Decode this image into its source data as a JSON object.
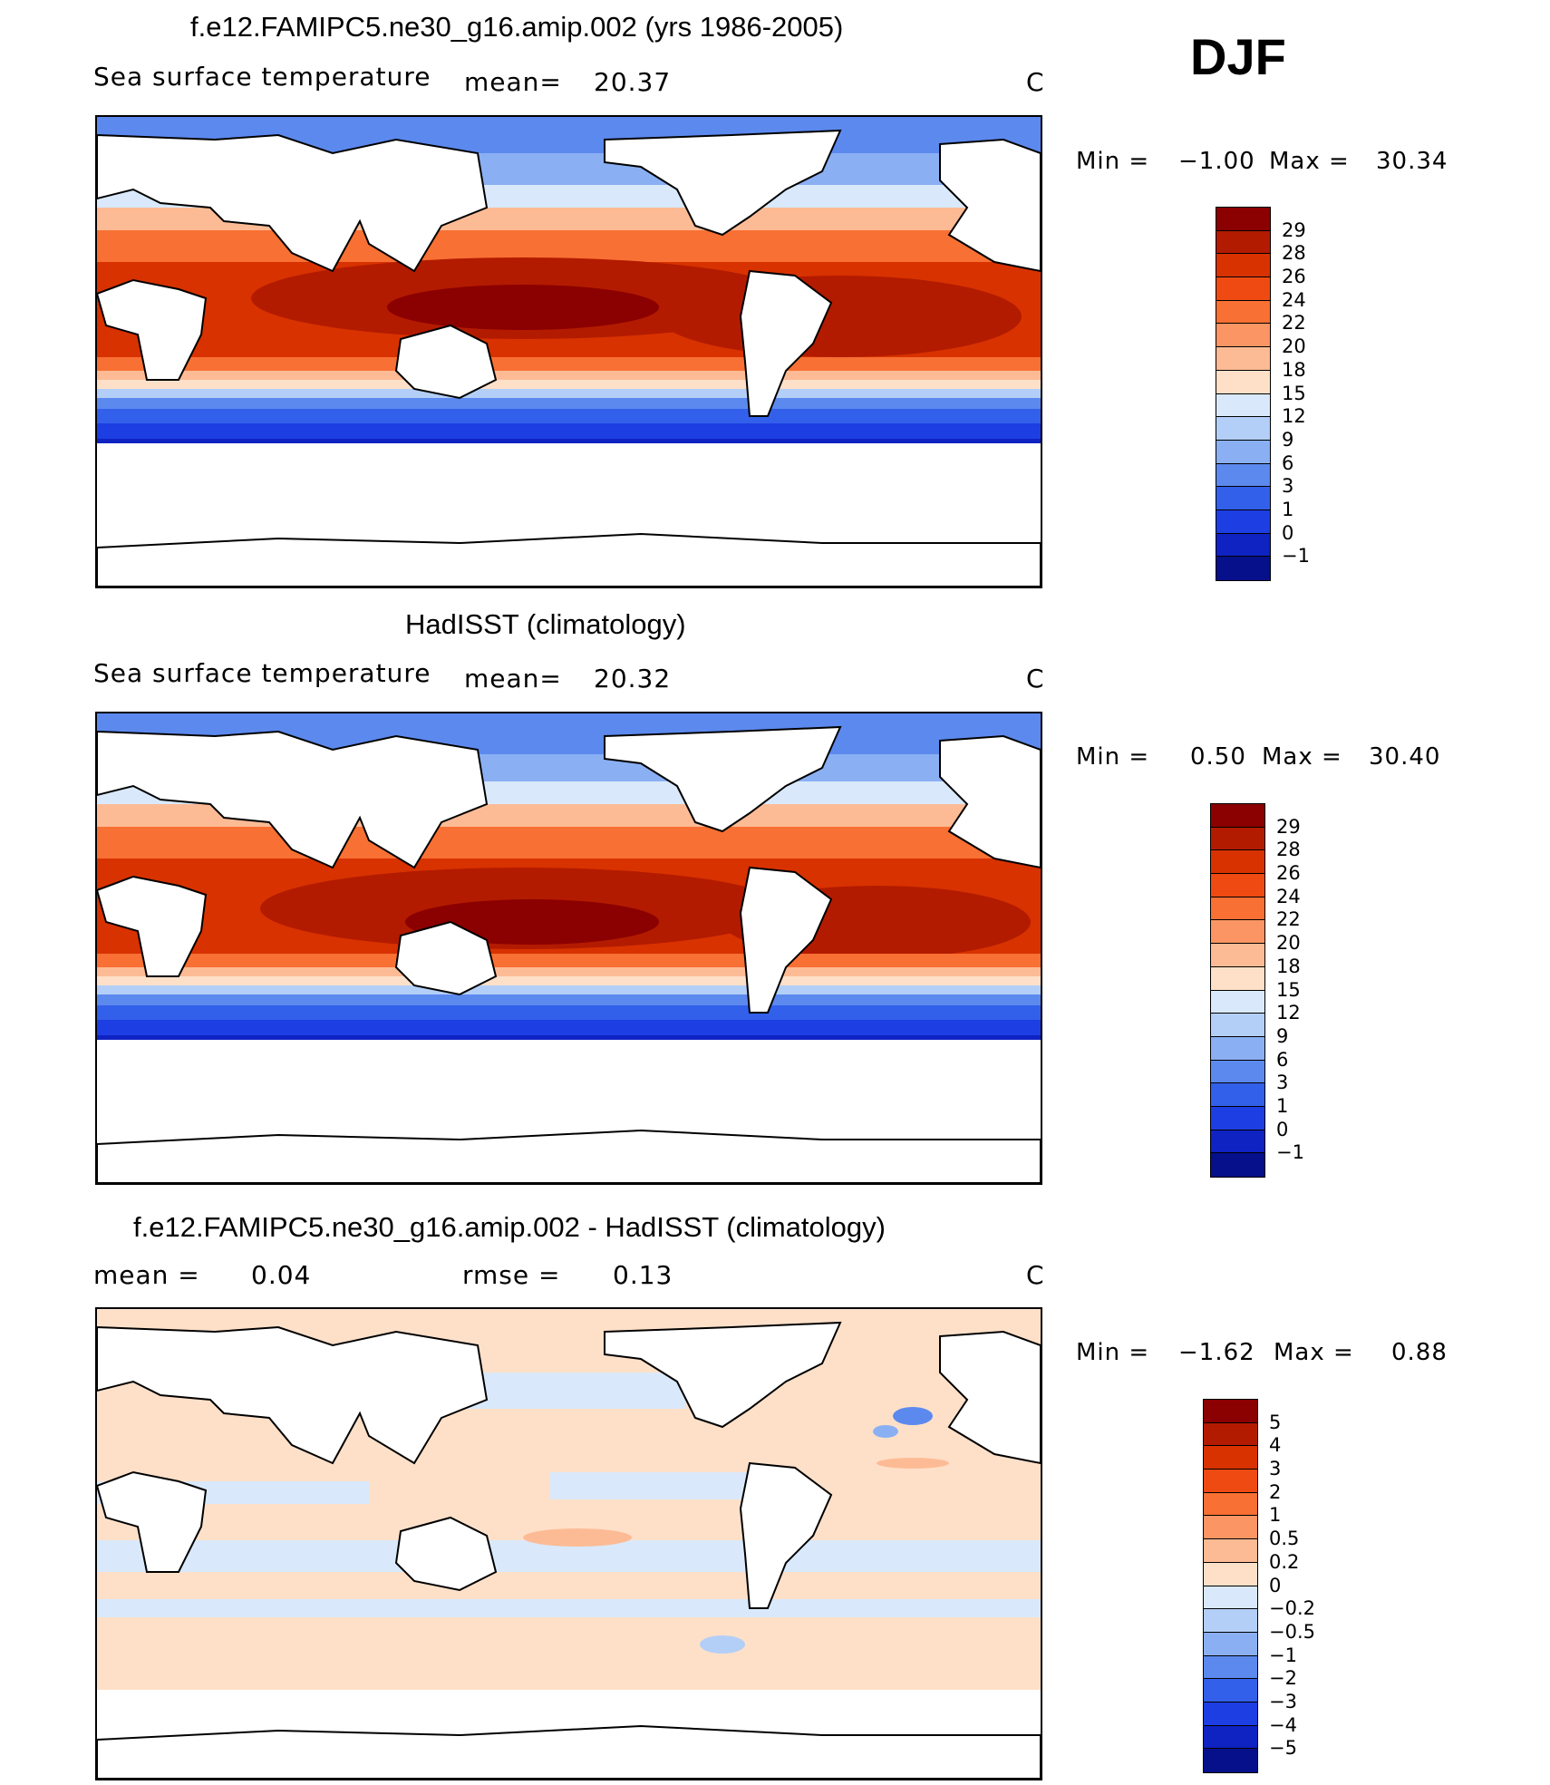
{
  "season": "DJF",
  "panels": [
    {
      "title": "f.e12.FAMIPC5.ne30_g16.amip.002 (yrs 1986-2005)",
      "variable": "Sea surface temperature",
      "stat_label": "mean=",
      "stat_value": "20.37",
      "units": "C",
      "min_label": "Min =",
      "min_value": "−1.00",
      "max_label": "Max =",
      "max_value": "30.34",
      "colorbar": {
        "labels": [
          "29",
          "28",
          "26",
          "24",
          "22",
          "20",
          "18",
          "15",
          "12",
          "9",
          "6",
          "3",
          "1",
          "0",
          "−1"
        ],
        "colors": [
          "#8b0000",
          "#b31b00",
          "#d83200",
          "#ee4a12",
          "#f87033",
          "#fb9563",
          "#fdbb95",
          "#fee0c9",
          "#d9e9fb",
          "#b3cff7",
          "#8ab0f3",
          "#5c89ee",
          "#3360ea",
          "#1d3ee2",
          "#0f22c2",
          "#05108a"
        ]
      }
    },
    {
      "title": "HadISST (climatology)",
      "variable": "Sea surface temperature",
      "stat_label": "mean=",
      "stat_value": "20.32",
      "units": "C",
      "min_label": "Min =",
      "min_value": "0.50",
      "max_label": "Max =",
      "max_value": "30.40",
      "colorbar": {
        "labels": [
          "29",
          "28",
          "26",
          "24",
          "22",
          "20",
          "18",
          "15",
          "12",
          "9",
          "6",
          "3",
          "1",
          "0",
          "−1"
        ],
        "colors": [
          "#8b0000",
          "#b31b00",
          "#d83200",
          "#ee4a12",
          "#f87033",
          "#fb9563",
          "#fdbb95",
          "#fee0c9",
          "#d9e9fb",
          "#b3cff7",
          "#8ab0f3",
          "#5c89ee",
          "#3360ea",
          "#1d3ee2",
          "#0f22c2",
          "#05108a"
        ]
      }
    },
    {
      "title": "f.e12.FAMIPC5.ne30_g16.amip.002 - HadISST (climatology)",
      "stat_label": "mean =",
      "stat_value": "0.04",
      "stat2_label": "rmse =",
      "stat2_value": "0.13",
      "units": "C",
      "min_label": "Min =",
      "min_value": "−1.62",
      "max_label": "Max =",
      "max_value": "0.88",
      "colorbar": {
        "labels": [
          "5",
          "4",
          "3",
          "2",
          "1",
          "0.5",
          "0.2",
          "0",
          "−0.2",
          "−0.5",
          "−1",
          "−2",
          "−3",
          "−4",
          "−5"
        ],
        "colors": [
          "#8b0000",
          "#b31b00",
          "#d83200",
          "#ee4a12",
          "#f87033",
          "#fb9563",
          "#fdbb95",
          "#fee0c9",
          "#d9e9fb",
          "#b3cff7",
          "#8ab0f3",
          "#5c89ee",
          "#3360ea",
          "#1d3ee2",
          "#0f22c2",
          "#05108a"
        ]
      }
    }
  ]
}
